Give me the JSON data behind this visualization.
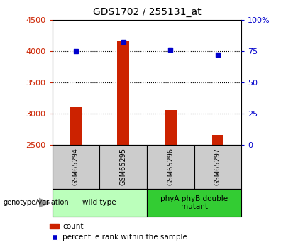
{
  "title": "GDS1702 / 255131_at",
  "samples": [
    "GSM65294",
    "GSM65295",
    "GSM65296",
    "GSM65297"
  ],
  "count_values": [
    3100,
    4150,
    3050,
    2650
  ],
  "percentile_values": [
    75,
    82,
    76,
    72
  ],
  "ylim_left": [
    2500,
    4500
  ],
  "ylim_right": [
    0,
    100
  ],
  "yticks_left": [
    2500,
    3000,
    3500,
    4000,
    4500
  ],
  "yticks_right": [
    0,
    25,
    50,
    75,
    100
  ],
  "yticklabels_right": [
    "0",
    "25",
    "50",
    "75",
    "100%"
  ],
  "grid_lines": [
    3000,
    3500,
    4000
  ],
  "bar_color": "#cc2200",
  "dot_color": "#0000cc",
  "bar_width": 0.25,
  "groups": [
    {
      "label": "wild type",
      "indices": [
        0,
        1
      ],
      "color": "#bbffbb"
    },
    {
      "label": "phyA phyB double\nmutant",
      "indices": [
        2,
        3
      ],
      "color": "#33cc33"
    }
  ],
  "group_label": "genotype/variation",
  "legend_items": [
    {
      "color": "#cc2200",
      "label": "count",
      "marker": "s"
    },
    {
      "color": "#0000cc",
      "label": "percentile rank within the sample",
      "marker": "s"
    }
  ],
  "left_axis_color": "#cc2200",
  "right_axis_color": "#0000cc",
  "sample_box_color": "#cccccc",
  "figsize": [
    4.2,
    3.45
  ],
  "dpi": 100
}
